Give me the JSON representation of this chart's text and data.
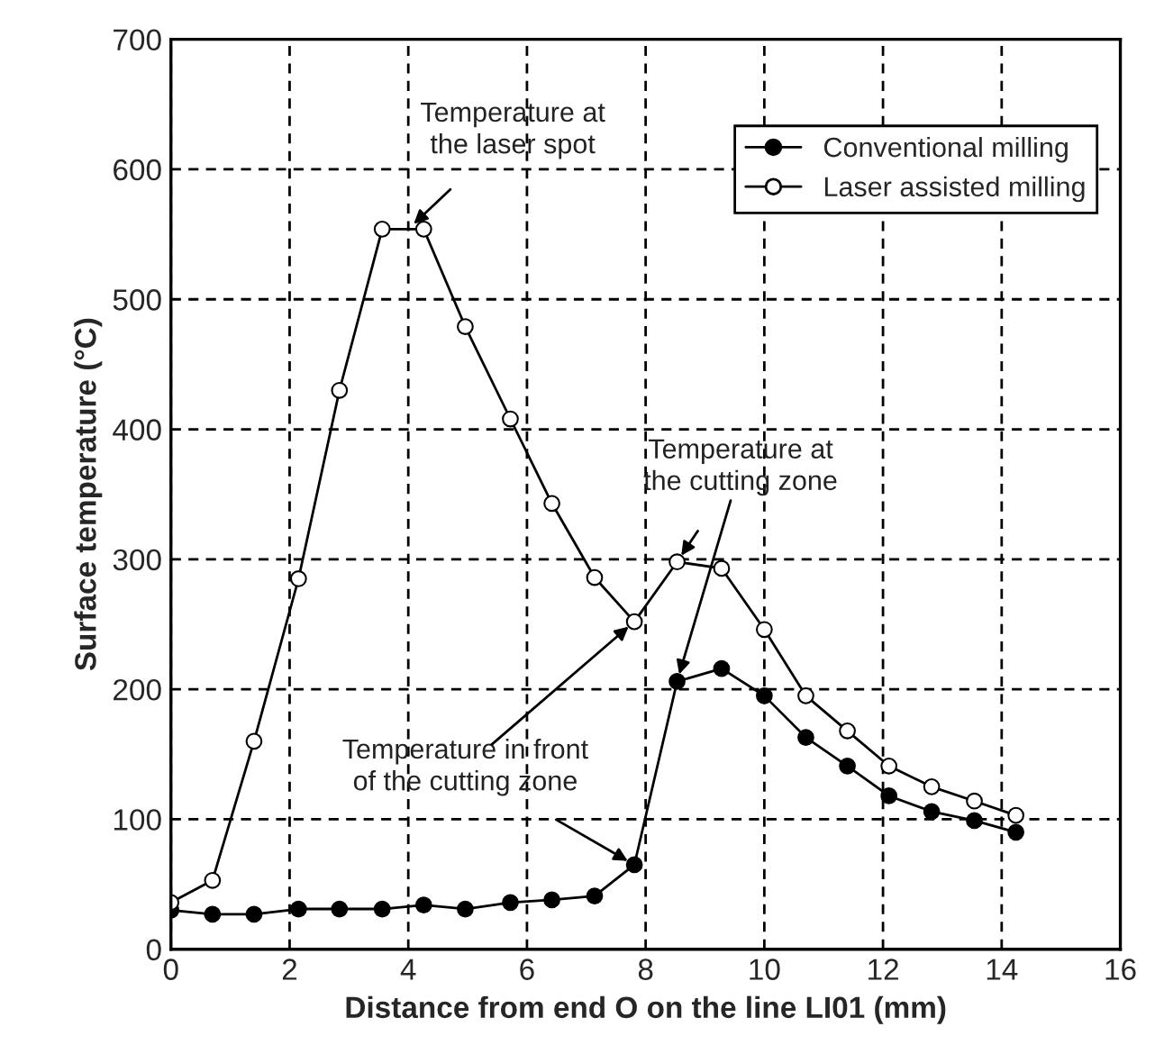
{
  "chart_data": {
    "type": "line",
    "xlabel": "Distance from end O on the line LI01 (mm)",
    "ylabel": "Surface temperature (°C)",
    "xlim": [
      0,
      16
    ],
    "xticks": [
      0,
      2,
      4,
      6,
      8,
      10,
      12,
      14,
      16
    ],
    "ylim": [
      0,
      700
    ],
    "yticks": [
      0,
      100,
      200,
      300,
      400,
      500,
      600,
      700
    ],
    "grid": true,
    "legend": "top right",
    "marker": "circle",
    "series": [
      {
        "name": "Conventional milling",
        "color": "#000000",
        "x": [
          0,
          0.7,
          1.4,
          2.15,
          2.84,
          3.56,
          4.26,
          4.96,
          5.72,
          6.42,
          7.14,
          7.81,
          8.53,
          9.28,
          10.0,
          10.7,
          11.4,
          12.1,
          12.82,
          13.54,
          14.24
        ],
        "values": [
          30,
          27,
          27,
          31,
          31,
          31,
          34,
          31,
          36,
          38,
          41,
          65,
          206,
          216,
          195,
          163,
          141,
          118,
          106,
          99,
          90
        ]
      },
      {
        "name": "Laser assisted milling",
        "color": "#ffffff",
        "x": [
          0,
          0.7,
          1.4,
          2.15,
          2.84,
          3.56,
          4.26,
          4.96,
          5.72,
          6.42,
          7.14,
          7.81,
          8.53,
          9.28,
          10.0,
          10.7,
          11.4,
          12.1,
          12.82,
          13.54,
          14.24
        ],
        "values": [
          36,
          53,
          160,
          285,
          430,
          554,
          554,
          479,
          408,
          343,
          286,
          252,
          298,
          293,
          246,
          195,
          168,
          141,
          125,
          114,
          103
        ]
      }
    ],
    "annotations": [
      {
        "text": "Temperature at\nthe laser spot",
        "x": 4.0,
        "y": 554
      },
      {
        "text": "Temperature at\nthe cutting zone",
        "x": 8.53,
        "y": 298
      },
      {
        "text": "Temperature in front\nof the cutting zone",
        "x": 7.81,
        "y": 65
      }
    ]
  }
}
